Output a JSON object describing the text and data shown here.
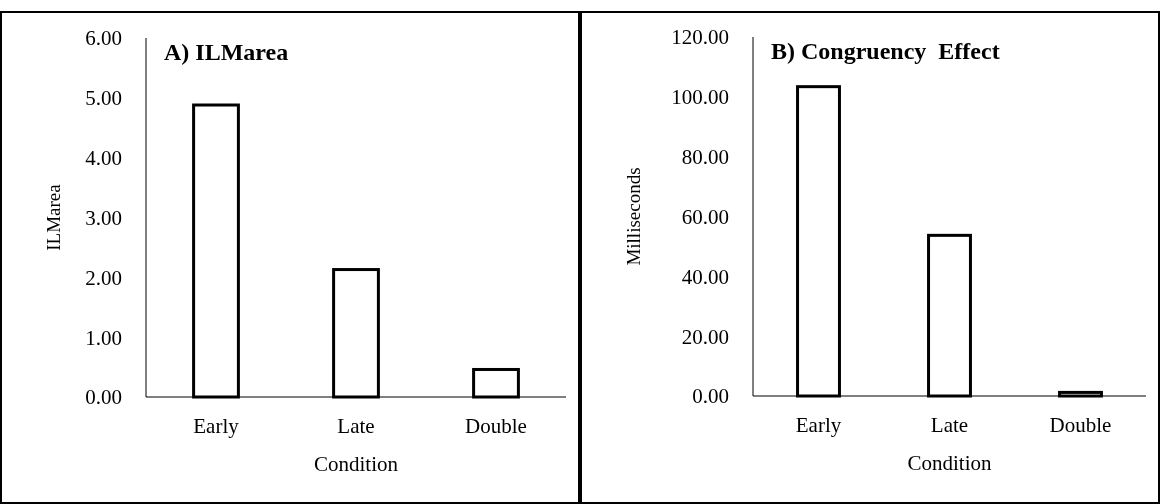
{
  "chart_data": [
    {
      "type": "bar",
      "title": "A) ILMarea",
      "xlabel": "Condition",
      "ylabel": "ILMarea",
      "categories": [
        "Early",
        "Late",
        "Double"
      ],
      "values": [
        4.88,
        2.13,
        0.46
      ],
      "color": "#ffffff",
      "ylim": [
        0,
        6
      ],
      "yticks": [
        {
          "value": 0,
          "label": "0.00"
        },
        {
          "value": 1,
          "label": "1.00"
        },
        {
          "value": 2,
          "label": "2.00"
        },
        {
          "value": 3,
          "label": "3.00"
        },
        {
          "value": 4,
          "label": "4.00"
        },
        {
          "value": 5,
          "label": "5.00"
        },
        {
          "value": 6,
          "label": "6.00"
        }
      ]
    },
    {
      "type": "bar",
      "title": "B) Congruency  Effect",
      "xlabel": "Condition",
      "ylabel": "Milliseconds",
      "categories": [
        "Early",
        "Late",
        "Double"
      ],
      "values": [
        103.4,
        53.7,
        1.2
      ],
      "color": "#ffffff",
      "ylim": [
        0,
        120
      ],
      "yticks": [
        {
          "value": 0,
          "label": "0.00"
        },
        {
          "value": 20,
          "label": "20.00"
        },
        {
          "value": 40,
          "label": "40.00"
        },
        {
          "value": 60,
          "label": "60.00"
        },
        {
          "value": 80,
          "label": "80.00"
        },
        {
          "value": 100,
          "label": "100.00"
        },
        {
          "value": 120,
          "label": "120.00"
        }
      ]
    }
  ]
}
